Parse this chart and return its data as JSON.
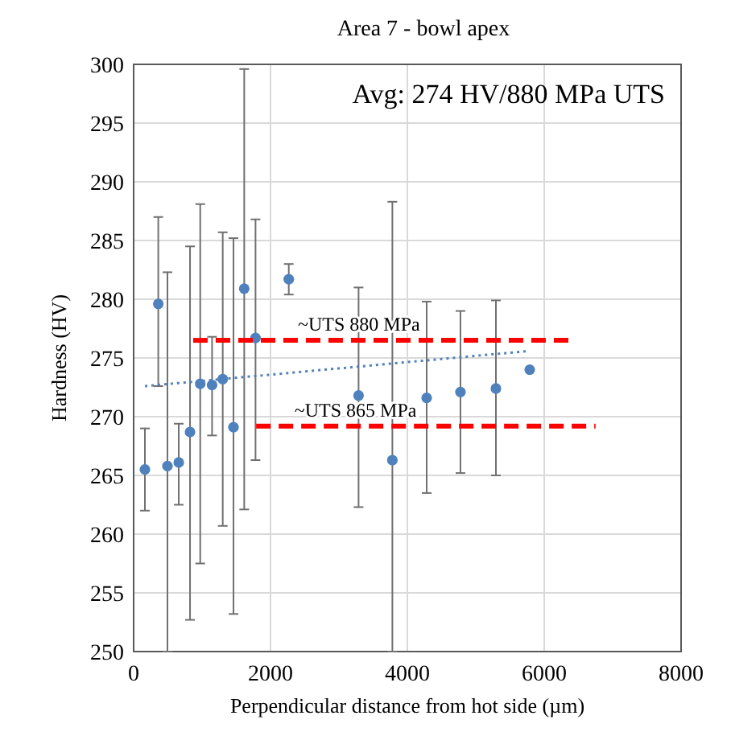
{
  "chart_data": {
    "type": "scatter",
    "title": "Area 7 - bowl apex",
    "xlabel": "Perpendicular distance from hot side (µm)",
    "ylabel": "Hardness (HV)",
    "xlim": [
      0,
      8000
    ],
    "xticks": [
      0,
      2000,
      4000,
      6000,
      8000
    ],
    "ylim": [
      250,
      300
    ],
    "yticks": [
      250,
      255,
      260,
      265,
      270,
      275,
      280,
      285,
      290,
      295,
      300
    ],
    "grid": true,
    "series": [
      {
        "color": "#4f81bd",
        "marker": "circle",
        "x": [
          165,
          360,
          494,
          659,
          824,
          973,
          1146,
          1302,
          1459,
          1616,
          1781,
          2267,
          3287,
          3781,
          4282,
          4776,
          5294,
          5788
        ],
        "values": [
          265.5,
          279.6,
          265.8,
          266.1,
          268.7,
          272.8,
          272.7,
          273.2,
          269.1,
          280.9,
          276.7,
          281.7,
          271.8,
          266.3,
          271.6,
          272.1,
          272.4,
          274
        ],
        "errors": [
          [
            262,
            269
          ],
          [
            272.6,
            287
          ],
          [
            250,
            282.3
          ],
          [
            262.5,
            269.4
          ],
          [
            252.7,
            284.5
          ],
          [
            257.5,
            288.1
          ],
          [
            268.4,
            276.8
          ],
          [
            260.7,
            285.7
          ],
          [
            253.2,
            285.2
          ],
          [
            262.1,
            299.6
          ],
          [
            266.3,
            286.8
          ],
          [
            280.4,
            283
          ],
          [
            262.3,
            281
          ],
          [
            250,
            288.3
          ],
          [
            263.5,
            279.8
          ],
          [
            265.2,
            279
          ],
          [
            265,
            279.9
          ],
          null
        ]
      },
      {
        "type": "line",
        "color": "#4f81bd",
        "line_style": "dotted",
        "x": [
          165,
          5788
        ],
        "values": [
          272.6,
          275.6
        ]
      },
      {
        "type": "line",
        "color": "#ff0000",
        "line_style": "dashed",
        "x": [
          870,
          6400
        ],
        "values": [
          276.5,
          276.5
        ]
      },
      {
        "type": "line",
        "color": "#ff0000",
        "line_style": "dashed",
        "x": [
          1790,
          6750
        ],
        "values": [
          269.2,
          269.2
        ]
      }
    ],
    "annotations": [
      "Avg: 274 HV/880 MPa UTS",
      {
        "text": "~UTS 880 MPa",
        "x": 2400,
        "y": 276.5
      },
      {
        "text": "~UTS 865 MPa",
        "x": 2350,
        "y": 269.2
      }
    ]
  }
}
